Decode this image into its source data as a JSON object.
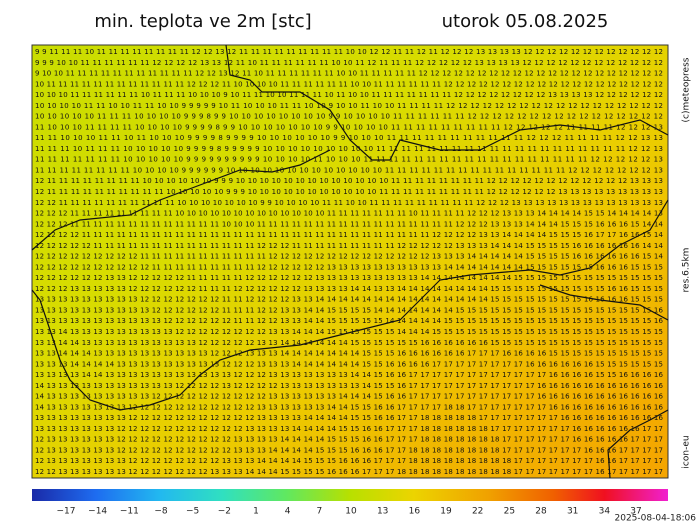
{
  "header": {
    "title": "min. teplota ve 2m [stc]",
    "date": "utorok 05.08.2025"
  },
  "side_labels": {
    "copyright": "(c)meteopress",
    "resolution": "res.6.5km",
    "model": "icon-eu"
  },
  "timestamp": "2025-08-04-18:06",
  "colorbar": {
    "ticks": [
      "−17",
      "−14",
      "−11",
      "−8",
      "−5",
      "−2",
      "1",
      "4",
      "7",
      "10",
      "13",
      "16",
      "19",
      "22",
      "25",
      "28",
      "31",
      "34",
      "37"
    ]
  },
  "map": {
    "rows": [
      "9 9 11 11 11 10 11 11 11 11 11 11 11 11 12 12 13 12 11 11 11 11 11 11 11 11 11 10 10 12 12 11 11 12 11 12 12 12 13 13 13 13 12 12 12 12 12 12 12 12 12 12 12 12",
      "9 9 9 10 10 11 11 11 11 11 11 12 12 12 12 13 13 12 11 10 11 11 11 11 11 11 10 10 11 12 11 11 11 12 12 12 12 12 13 13 13 13 12 12 12 12 12 12 12 12 12 12 12 12",
      "9 10 10 11 11 11 11 11 11 11 11 11 11 11 12 12 13 12 11 10 11 11 11 11 11 11 10 10 11 11 11 11 11 12 12 12 12 12 12 12 12 12 12 12 12 12 12 12 12 12 12 12 12 12",
      "10 11 11 11 11 11 11 11 11 11 11 11 11 12 12 12 11 10 10 10 10 11 11 11 11 11 11 10 10 11 11 11 11 11 11 12 12 12 12 12 12 12 12 12 12 12 12 12 12 12 12 12 12 12",
      "10 10 10 11 11 11 11 11 11 10 11 11 11 10 10 10 9 10 11 11 10 10 11 11 11 10 11 10 10 11 11 11 11 11 11 11 12 12 12 12 12 12 12 12 13 13 13 13 12 12 12 12 12 12",
      "10 10 10 10 11 11 10 10 11 11 10 10 9 9 9 9 9 10 11 10 10 10 11 11 10 10 9 10 10 11 10 10 11 11 11 11 12 12 12 12 12 12 12 12 12 12 12 12 12 12 12 12 12 12",
      "10 10 10 10 10 11 11 11 10 10 10 10 9 9 9 8 9 9 10 10 10 10 10 10 10 10 9 9 10 10 10 10 11 11 11 11 11 11 12 12 12 12 12 12 12 12 12 12 12 12 12 12 12 12",
      "11 10 10 10 11 11 11 11 10 10 10 10 9 9 9 9 8 9 9 10 10 10 10 10 10 10 9 9 10 10 10 10 11 11 11 11 11 11 11 11 11 12 12 12 12 12 11 11 11 11 12 12 12 13",
      "11 11 10 10 10 11 11 10 11 10 10 10 9 9 9 9 8 9 9 9 9 10 10 10 10 10 10 9 9 10 10 10 11 11 11 11 11 11 11 11 11 11 11 12 12 12 11 11 11 11 12 12 13 13",
      "11 11 11 10 11 11 11 10 10 10 10 10 9 9 9 9 8 9 9 9 9 9 10 10 10 10 10 10 10 10 10 11 11 11 11 11 11 11 11 11 11 11 11 11 11 11 11 11 11 11 11 12 12 13",
      "11 11 11 11 11 11 11 10 10 10 10 10 9 9 9 9 9 9 9 9 9 9 10 10 10 10 11 10 10 10 11 11 11 11 11 11 11 11 11 11 11 11 11 11 11 11 11 11 12 12 12 12 12 13",
      "11 11 11 11 11 11 11 11 10 10 10 10 9 9 9 9 9 9 10 10 10 10 10 10 10 10 10 10 10 10 10 11 11 11 11 11 11 11 11 11 11 11 11 11 11 11 12 12 12 12 12 12 12 13",
      "12 11 11 11 11 11 11 11 11 10 10 10 10 10 10 9 9 9 10 10 10 10 10 10 10 10 10 10 10 10 10 11 11 11 11 11 11 11 11 12 12 12 12 12 12 12 12 12 12 12 12 13 13 13",
      "12 11 11 11 11 11 11 11 11 11 11 10 10 10 10 10 9 9 9 10 10 10 10 10 10 10 10 10 10 10 11 11 11 11 11 11 11 11 11 12 12 12 12 12 12 13 13 13 13 13 13 13 13 13",
      "12 12 11 11 11 11 11 11 11 11 11 11 10 10 10 10 10 10 10 9 9 10 10 10 10 11 11 10 10 11 11 11 11 11 11 11 11 11 12 12 12 13 13 13 13 13 13 13 13 13 13 13 13 13",
      "12 12 12 11 11 11 11 11 11 11 11 11 10 10 10 10 10 10 10 10 10 10 10 10 10 11 11 11 11 11 11 11 10 11 11 11 11 12 12 12 13 13 13 14 14 14 14 15 15 14 14 14 14 13",
      "12 12 12 11 11 11 11 11 11 11 11 11 11 11 11 11 10 10 10 11 11 11 11 11 11 11 11 11 11 11 11 11 11 11 11 11 12 12 12 13 13 13 14 14 14 15 15 15 16 16 16 15 14 14",
      "12 12 12 12 11 11 11 11 11 11 11 11 11 11 11 11 11 11 11 11 11 11 11 11 11 11 11 11 11 11 11 11 11 11 12 12 12 12 13 13 14 14 14 14 15 15 15 16 17 17 16 16 15 14",
      "12 12 12 12 12 11 11 11 11 11 11 11 11 11 11 11 11 11 11 12 12 12 11 11 11 11 11 11 11 11 11 12 12 12 12 12 13 13 13 14 14 14 15 15 15 15 16 16 16 16 16 16 14 14",
      "12 12 12 12 12 12 12 12 12 11 11 11 11 11 11 11 11 11 11 11 12 12 12 12 12 12 12 12 12 12 12 12 12 12 13 13 13 14 14 14 14 14 15 15 15 15 16 16 16 16 16 16 15 14",
      "12 12 12 12 12 12 12 12 12 12 11 11 11 11 11 11 11 11 11 12 12 12 12 12 12 13 13 13 13 13 13 13 13 13 13 14 14 14 14 14 14 14 15 15 15 15 15 15 16 16 16 15 15 15",
      "12 12 12 12 12 12 13 13 12 12 12 12 12 11 11 11 11 11 12 12 12 12 12 12 13 13 13 13 13 13 13 13 13 14 14 14 14 14 14 14 14 15 15 15 15 15 15 15 15 15 15 15 15 15",
      "12 12 12 13 13 13 13 13 12 12 12 12 12 12 11 11 11 12 12 12 12 12 12 13 13 13 13 14 14 13 13 14 14 14 14 14 14 14 14 15 15 15 15 15 15 15 15 15 15 16 16 15 15 15",
      "13 13 13 13 13 13 13 13 13 12 12 12 12 12 12 12 11 11 12 12 12 12 13 13 14 14 14 14 14 14 14 14 14 14 14 14 14 14 14 15 15 15 15 15 15 15 15 16 16 16 16 15 15 15",
      "13 13 13 13 13 13 13 13 13 13 12 12 12 12 12 12 11 11 11 12 12 13 13 14 14 15 15 15 15 14 14 14 14 14 14 14 15 15 15 15 15 15 15 15 15 15 15 15 15 15 15 15 15 16",
      "13 13 13 13 13 13 13 13 13 13 13 12 12 12 12 12 12 11 11 12 12 13 13 14 14 15 15 15 15 15 14 14 14 14 14 15 15 15 15 15 15 15 15 15 15 15 15 15 15 15 15 15 15 16",
      "13 13 14 13 13 13 13 13 13 13 13 13 12 12 12 12 12 12 12 12 13 13 14 14 14 15 15 15 15 15 15 14 14 14 15 15 15 15 15 15 15 15 15 15 15 15 15 15 15 15 15 15 15 15",
      "13 13 14 14 13 13 13 13 13 13 13 13 13 13 12 12 12 12 12 13 13 14 14 14 14 14 14 15 15 15 15 15 15 16 16 16 16 16 16 15 15 15 15 15 15 15 15 15 15 15 15 15 15 15",
      "13 13 14 14 14 13 13 13 13 13 13 13 13 13 13 12 12 12 13 13 13 14 14 14 14 14 14 14 15 15 15 16 16 16 16 16 16 17 17 17 16 16 16 16 15 15 15 15 15 15 15 15 15 15",
      "13 13 13 14 14 14 14 13 13 13 13 13 13 13 13 13 12 12 12 13 13 13 14 14 14 14 14 14 15 15 16 16 16 16 17 17 17 17 17 17 17 17 16 16 16 16 16 16 15 15 15 15 15 15",
      "13 13 13 13 14 14 13 13 13 13 13 13 13 13 13 13 13 12 12 12 13 13 13 13 13 13 13 14 14 15 16 16 17 17 17 17 17 17 17 17 17 17 17 17 16 16 16 16 15 15 16 16 16 16",
      "14 13 13 13 13 13 13 13 13 13 13 13 12 12 12 12 13 12 12 12 12 13 13 13 13 13 13 13 14 15 15 16 17 17 17 17 17 17 17 17 17 17 17 16 16 16 16 16 16 16 16 16 16 16",
      "14 13 13 13 13 13 13 13 13 13 12 12 12 12 12 12 12 12 12 12 13 13 13 13 13 13 14 14 14 15 16 16 17 17 17 17 17 17 17 17 17 17 17 16 16 16 16 16 16 16 16 16 16 16",
      "14 13 13 13 13 13 13 13 12 12 12 12 12 12 12 12 12 12 12 13 13 13 13 13 13 14 14 15 15 16 16 17 17 17 17 18 18 17 17 17 17 17 17 17 16 16 16 16 16 16 16 16 16 16",
      "13 13 13 13 13 13 13 13 12 12 12 12 12 12 12 12 12 12 12 13 13 13 13 14 14 14 14 15 15 16 16 17 17 18 18 18 18 18 17 17 17 17 17 17 17 16 16 16 16 16 16 16 16 16",
      "13 13 13 13 13 13 13 12 12 12 12 12 12 12 12 12 12 12 13 13 13 13 14 14 14 14 15 15 16 16 17 17 17 18 18 18 18 18 18 17 17 17 17 17 17 17 16 16 16 16 16 16 17 17",
      "12 13 13 13 13 13 13 12 12 12 12 12 12 12 12 12 12 13 13 13 13 14 14 14 14 15 15 15 16 16 17 17 17 18 18 18 18 18 18 18 17 17 17 17 17 17 16 16 16 16 16 17 17 17",
      "12 13 13 13 13 13 13 12 12 12 12 12 12 12 12 12 12 13 13 13 14 14 14 14 15 15 15 16 16 16 17 17 18 18 18 18 18 18 18 18 17 17 17 17 17 17 17 16 16 16 17 17 17 17",
      "12 13 13 13 13 13 13 13 12 12 12 12 12 12 12 12 13 13 13 14 14 14 14 15 15 15 16 16 16 17 17 17 18 18 18 18 18 18 18 18 18 17 17 17 17 17 17 17 16 16 17 17 17 17",
      "12 12 13 13 13 13 13 13 12 12 12 12 12 12 12 13 13 13 14 14 14 15 15 15 15 16 16 16 17 17 17 18 18 18 18 18 18 18 18 18 18 17 17 17 17 17 17 17 16 17 17 17 17 17"
    ]
  }
}
